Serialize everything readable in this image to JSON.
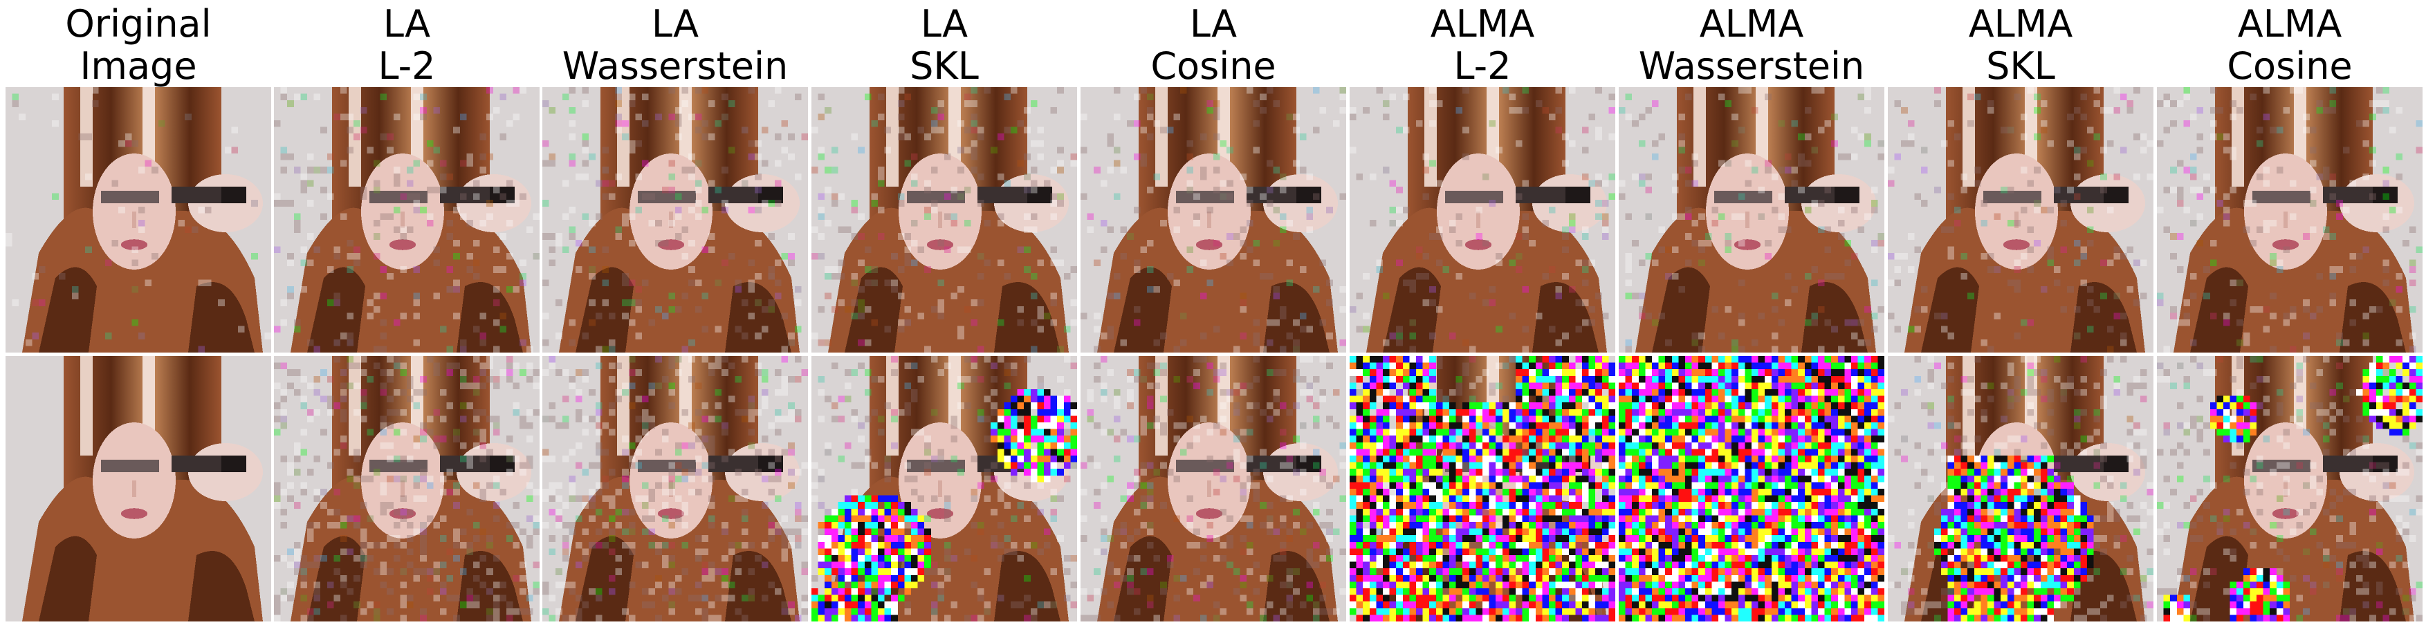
{
  "columns": [
    {
      "line1": "Original",
      "line2": "Image",
      "perturbation_row1": 0.04,
      "perturbation_row2": 0.0,
      "region_row2": "none"
    },
    {
      "line1": "LA",
      "line2": "L-2",
      "perturbation_row1": 0.15,
      "perturbation_row2": 0.3,
      "region_row2": "full"
    },
    {
      "line1": "LA",
      "line2": "Wasserstein",
      "perturbation_row1": 0.15,
      "perturbation_row2": 0.28,
      "region_row2": "full"
    },
    {
      "line1": "LA",
      "line2": "SKL",
      "perturbation_row1": 0.15,
      "perturbation_row2": 0.95,
      "region_row2": "blobs-left-right"
    },
    {
      "line1": "LA",
      "line2": "Cosine",
      "perturbation_row1": 0.12,
      "perturbation_row2": 0.22,
      "region_row2": "full"
    },
    {
      "line1": "ALMA",
      "line2": "L-2",
      "perturbation_row1": 0.12,
      "perturbation_row2": 0.92,
      "region_row2": "most"
    },
    {
      "line1": "ALMA",
      "line2": "Wasserstein",
      "perturbation_row1": 0.12,
      "perturbation_row2": 1.0,
      "region_row2": "all"
    },
    {
      "line1": "ALMA",
      "line2": "SKL",
      "perturbation_row1": 0.12,
      "perturbation_row2": 0.95,
      "region_row2": "lower-center"
    },
    {
      "line1": "ALMA",
      "line2": "Cosine",
      "perturbation_row1": 0.12,
      "perturbation_row2": 0.95,
      "region_row2": "corners"
    }
  ],
  "rows": 2,
  "colors": {
    "background": "#ffffff",
    "hair_dark": "#5a2a14",
    "hair_mid": "#9b5430",
    "hair_light": "#c98a5a",
    "skin": "#e9c6be",
    "backdrop": "#d9d4d4",
    "lips": "#b85868"
  }
}
